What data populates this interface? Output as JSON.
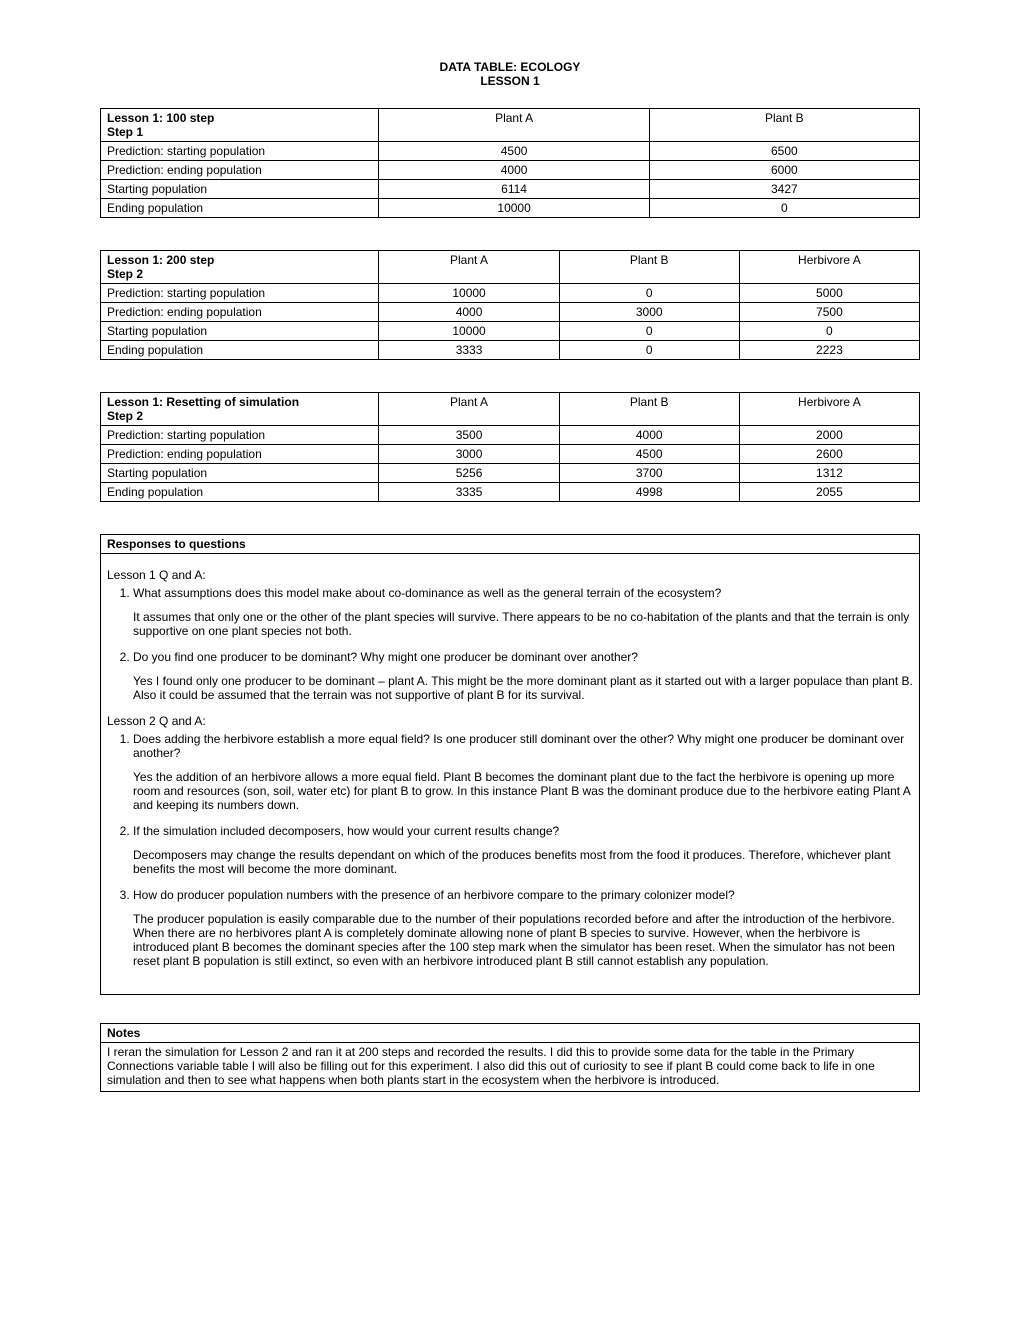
{
  "title": {
    "line1": "DATA TABLE: ECOLOGY",
    "line2": "LESSON 1"
  },
  "table1": {
    "header": {
      "label": "Lesson 1: 100 step",
      "sub": "Step 1",
      "c1": "Plant A",
      "c2": "Plant B"
    },
    "rows": [
      {
        "label": "Prediction:  starting population",
        "c1": "4500",
        "c2": "6500"
      },
      {
        "label": "Prediction:  ending population",
        "c1": "4000",
        "c2": "6000"
      },
      {
        "label": "Starting population",
        "c1": "6114",
        "c2": "3427"
      },
      {
        "label": "Ending population",
        "c1": "10000",
        "c2": "0"
      }
    ]
  },
  "table2": {
    "header": {
      "label": "Lesson 1: 200 step",
      "sub": "Step 2",
      "c1": "Plant A",
      "c2": "Plant B",
      "c3": "Herbivore A"
    },
    "rows": [
      {
        "label": "Prediction:  starting population",
        "c1": "10000",
        "c2": "0",
        "c3": "5000"
      },
      {
        "label": "Prediction:  ending population",
        "c1": "4000",
        "c2": "3000",
        "c3": "7500"
      },
      {
        "label": "Starting population",
        "c1": "10000",
        "c2": "0",
        "c3": "0"
      },
      {
        "label": "Ending population",
        "c1": "3333",
        "c2": "0",
        "c3": "2223"
      }
    ]
  },
  "table3": {
    "header": {
      "label": "Lesson 1: Resetting of simulation",
      "sub": "Step 2",
      "c1": "Plant A",
      "c2": "Plant B",
      "c3": "Herbivore A"
    },
    "rows": [
      {
        "label": "Prediction:  starting population",
        "c1": "3500",
        "c2": "4000",
        "c3": "2000"
      },
      {
        "label": "Prediction:  ending population",
        "c1": "3000",
        "c2": "4500",
        "c3": "2600"
      },
      {
        "label": "Starting population",
        "c1": "5256",
        "c2": "3700",
        "c3": "1312"
      },
      {
        "label": "Ending population",
        "c1": "3335",
        "c2": "4998",
        "c3": "2055"
      }
    ]
  },
  "responses": {
    "title": "Responses to questions",
    "lesson1": {
      "heading": "Lesson 1 Q and A:",
      "q1": "What assumptions does this model make about co-dominance as well as the general terrain of the ecosystem?",
      "a1": "It assumes that only one or the other of the plant species will survive. There appears to be no co-habitation of the plants and that the terrain is only supportive on one plant species not both.",
      "q2": "Do you find one producer to be dominant? Why might one producer be dominant over another?",
      "a2": "Yes I found only one producer to be dominant – plant A. This might be the more dominant plant as it started out with a larger populace than plant B. Also it could be assumed that the terrain was not supportive of plant B for its survival."
    },
    "lesson2": {
      "heading": "Lesson 2 Q and A:",
      "q1": "Does adding the herbivore establish a more equal field? Is one producer still dominant over the other? Why might one producer be dominant over another?",
      "a1": "Yes the addition of an herbivore allows a more equal field. Plant B becomes the dominant plant due to the fact the herbivore is opening up more room and resources (son, soil, water etc) for plant B to grow. In this instance Plant B was the dominant produce due to the herbivore eating Plant A and keeping its numbers down.",
      "q2": "If the simulation included decomposers, how would your current results change?",
      "a2": "Decomposers may change the results dependant on which of the produces benefits most from the food it produces. Therefore, whichever plant benefits the most will become the more dominant.",
      "q3": "How do producer population numbers with the presence of an herbivore compare to the primary colonizer model?",
      "a3": "The producer population is easily comparable due to the number of their populations recorded before and after the introduction of the herbivore. When there are no herbivores plant A is completely dominate allowing none of plant B species to survive. However, when the herbivore is introduced plant B becomes the dominant species after the 100 step mark when the simulator has been reset. When the simulator has not been reset plant B population is still extinct, so even with an herbivore introduced plant B still cannot establish any population."
    }
  },
  "notes": {
    "title": "Notes",
    "body": "I reran the simulation for Lesson 2 and ran it at 200 steps and recorded the results. I did this to provide some data for the table in the Primary Connections variable table I will also be filling out for this experiment. I also did this out of curiosity to see if plant B could come back to life in one simulation and then to see what happens when both plants start in the ecosystem when the herbivore is introduced."
  }
}
